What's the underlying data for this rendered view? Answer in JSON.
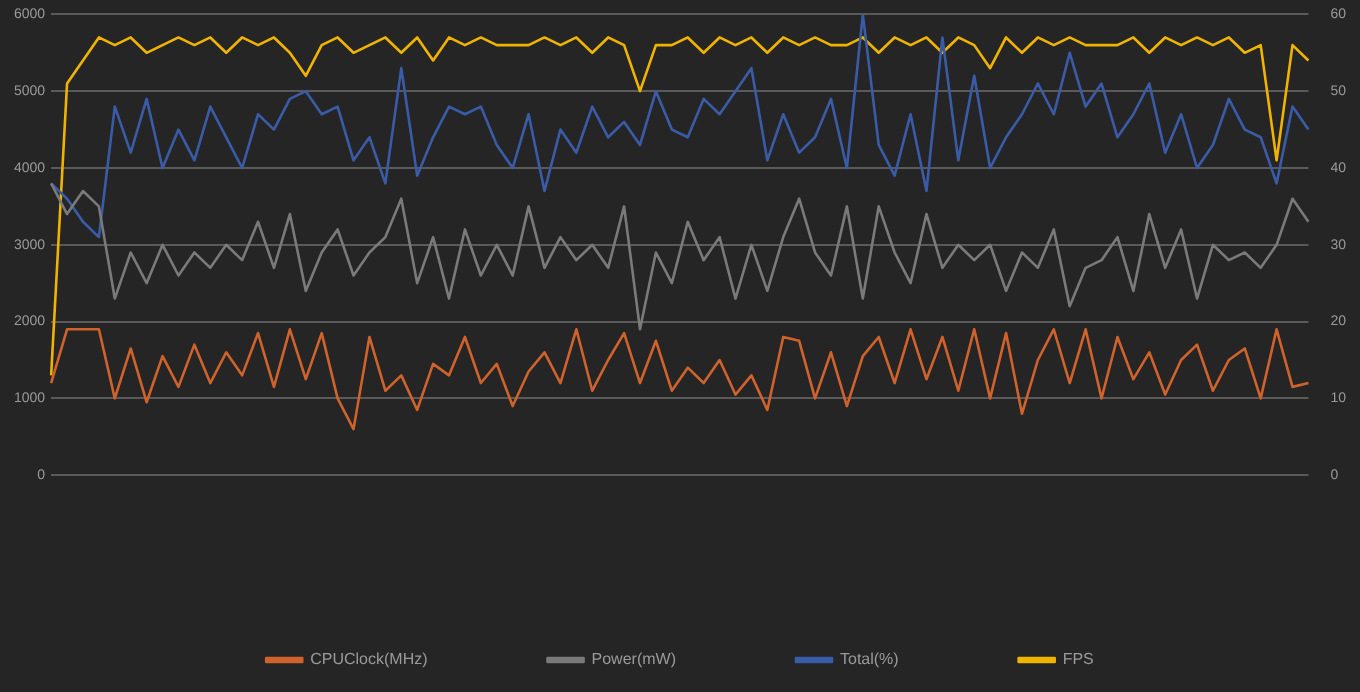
{
  "chart_data": {
    "type": "line",
    "categories": [
      null,
      null,
      null,
      null,
      null,
      null,
      null,
      null,
      null,
      null,
      null,
      null,
      null,
      null,
      null,
      null,
      null,
      null,
      null,
      null,
      null,
      null,
      null,
      null,
      null,
      null,
      null,
      null,
      null,
      null,
      null,
      null,
      null,
      null,
      null,
      null,
      null,
      null,
      null,
      null,
      null,
      null,
      null,
      null,
      null,
      null,
      null,
      null,
      null,
      null,
      null,
      null,
      null,
      null,
      null,
      null,
      null,
      null,
      null,
      null,
      null,
      null,
      null,
      null,
      null,
      null,
      null,
      null,
      null,
      null,
      null,
      null,
      null,
      null,
      null,
      null,
      null,
      null,
      null,
      null
    ],
    "ylim": [
      0,
      6000
    ],
    "yticks": [
      0,
      1000,
      2000,
      3000,
      4000,
      5000,
      6000
    ],
    "y2lim": [
      0,
      60
    ],
    "y2ticks": [
      0,
      10,
      20,
      30,
      40,
      50,
      60
    ],
    "grid": "y",
    "legend": "bottom",
    "marker": "none",
    "line_style": "solid",
    "series": [
      {
        "name": "CPUClock(MHz)",
        "color": "#d0622b",
        "values": [
          1200,
          1900,
          1900,
          1900,
          1000,
          1650,
          950,
          1550,
          1150,
          1700,
          1200,
          1600,
          1300,
          1850,
          1150,
          1900,
          1250,
          1850,
          1000,
          600,
          1800,
          1100,
          1300,
          850,
          1450,
          1300,
          1800,
          1200,
          1450,
          900,
          1350,
          1600,
          1200,
          1900,
          1100,
          1500,
          1850,
          1200,
          1750,
          1100,
          1400,
          1200,
          1500,
          1050,
          1300,
          850,
          1800,
          1750,
          1000,
          1600,
          900,
          1550,
          1800,
          1200,
          1900,
          1250,
          1800,
          1100,
          1900,
          1000,
          1850,
          800,
          1500,
          1900,
          1200,
          1900,
          1000,
          1800,
          1250,
          1600,
          1050,
          1500,
          1700,
          1100,
          1500,
          1650,
          1000,
          1900,
          1150,
          1200
        ]
      },
      {
        "name": "Power(mW)",
        "color": "#7a7a7a",
        "values": [
          3800,
          3400,
          3700,
          3500,
          2300,
          2900,
          2500,
          3000,
          2600,
          2900,
          2700,
          3000,
          2800,
          3300,
          2700,
          3400,
          2400,
          2900,
          3200,
          2600,
          2900,
          3100,
          3600,
          2500,
          3100,
          2300,
          3200,
          2600,
          3000,
          2600,
          3500,
          2700,
          3100,
          2800,
          3000,
          2700,
          3500,
          1900,
          2900,
          2500,
          3300,
          2800,
          3100,
          2300,
          3000,
          2400,
          3100,
          3600,
          2900,
          2600,
          3500,
          2300,
          3500,
          2900,
          2500,
          3400,
          2700,
          3000,
          2800,
          3000,
          2400,
          2900,
          2700,
          3200,
          2200,
          2700,
          2800,
          3100,
          2400,
          3400,
          2700,
          3200,
          2300,
          3000,
          2800,
          2900,
          2700,
          3000,
          3600,
          3300
        ]
      },
      {
        "name": "Total(%)",
        "color": "#3a5ca8",
        "axis": "y2",
        "values": [
          38,
          36,
          33,
          31,
          48,
          42,
          49,
          40,
          45,
          41,
          48,
          44,
          40,
          47,
          45,
          49,
          50,
          47,
          48,
          41,
          44,
          38,
          53,
          39,
          44,
          48,
          47,
          48,
          43,
          40,
          47,
          37,
          45,
          42,
          48,
          44,
          46,
          43,
          50,
          45,
          44,
          49,
          47,
          50,
          53,
          41,
          47,
          42,
          44,
          49,
          40,
          60,
          43,
          39,
          47,
          37,
          57,
          41,
          52,
          40,
          44,
          47,
          51,
          47,
          55,
          48,
          51,
          44,
          47,
          51,
          42,
          47,
          40,
          43,
          49,
          45,
          44,
          38,
          48,
          45
        ]
      },
      {
        "name": "FPS",
        "color": "#f0b400",
        "axis": "y2",
        "values": [
          13,
          51,
          54,
          57,
          56,
          57,
          55,
          56,
          57,
          56,
          57,
          55,
          57,
          56,
          57,
          55,
          52,
          56,
          57,
          55,
          56,
          57,
          55,
          57,
          54,
          57,
          56,
          57,
          56,
          56,
          56,
          57,
          56,
          57,
          55,
          57,
          56,
          50,
          56,
          56,
          57,
          55,
          57,
          56,
          57,
          55,
          57,
          56,
          57,
          56,
          56,
          57,
          55,
          57,
          56,
          57,
          55,
          57,
          56,
          53,
          57,
          55,
          57,
          56,
          57,
          56,
          56,
          56,
          57,
          55,
          57,
          56,
          57,
          56,
          57,
          55,
          56,
          41,
          56,
          54
        ]
      }
    ]
  }
}
